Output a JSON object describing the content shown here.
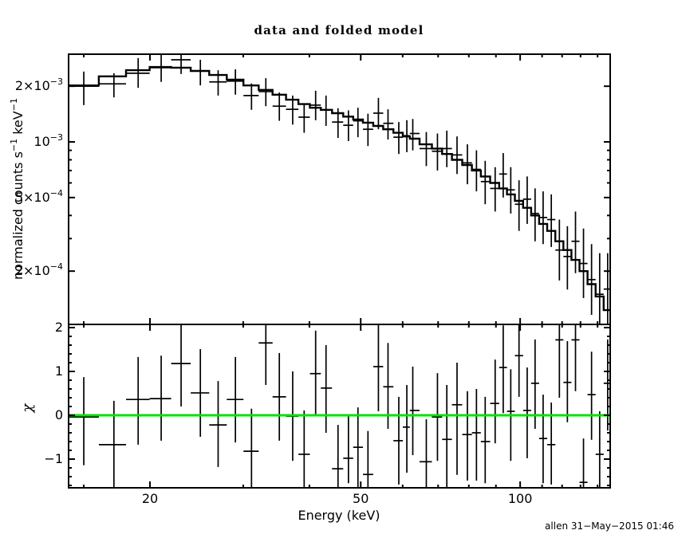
{
  "title": "data and folded model",
  "footer": "allen 31−May−2015 01:46",
  "colors": {
    "foreground": "#000000",
    "background": "#ffffff",
    "model_line": "#000000",
    "zero_line": "#00e300"
  },
  "chart_data": [
    {
      "id": "spectrum",
      "type": "scatter",
      "panel": "top",
      "title": "data and folded model",
      "xscale": "log",
      "yscale": "log",
      "ylabel": "normalized counts s⁻¹ keV⁻¹",
      "ylabel_segments": [
        {
          "t": "normalized counts s"
        },
        {
          "t": "−1",
          "sup": true
        },
        {
          "t": " keV"
        },
        {
          "t": "−1",
          "sup": true
        }
      ],
      "xlim": [
        14.0,
        148.0
      ],
      "ylim": [
        0.000103,
        0.00298
      ],
      "grid": false,
      "xticks": {
        "major": [
          20,
          50,
          100
        ],
        "labels": [
          "20",
          "50",
          "100"
        ],
        "minor": [
          15,
          30,
          40,
          60,
          70,
          80,
          90,
          110,
          120,
          130,
          140
        ]
      },
      "yticks": {
        "major": [
          0.002,
          0.001,
          0.0005,
          0.0002
        ],
        "labels": [
          {
            "base": "2×10",
            "exp": "−3"
          },
          {
            "base": "10",
            "exp": "−3"
          },
          {
            "base": "5×10",
            "exp": "−4"
          },
          {
            "base": "2×10",
            "exp": "−4"
          }
        ],
        "minor": [
          0.0009,
          0.0008,
          0.0007,
          0.0006,
          0.0004,
          0.0003
        ]
      },
      "points_format": [
        "energy_keV",
        "value",
        "err_lo",
        "err_hi"
      ],
      "points": [
        [
          15.0,
          0.002,
          0.00158,
          0.0024
        ],
        [
          17.1,
          0.00206,
          0.00174,
          0.00235
        ],
        [
          19.0,
          0.00235,
          0.00196,
          0.00284
        ],
        [
          21.0,
          0.00252,
          0.00211,
          0.00298
        ],
        [
          22.9,
          0.00278,
          0.00233,
          0.00298
        ],
        [
          24.9,
          0.00242,
          0.00202,
          0.00278
        ],
        [
          26.9,
          0.00211,
          0.00178,
          0.00244
        ],
        [
          29.0,
          0.00213,
          0.0018,
          0.00247
        ],
        [
          31.1,
          0.00178,
          0.00149,
          0.00207
        ],
        [
          33.1,
          0.00187,
          0.00156,
          0.00221
        ],
        [
          35.1,
          0.00156,
          0.0013,
          0.00185
        ],
        [
          37.2,
          0.0015,
          0.00124,
          0.00178
        ],
        [
          39.1,
          0.00136,
          0.00112,
          0.0016
        ],
        [
          41.1,
          0.00158,
          0.00131,
          0.00189
        ],
        [
          43.0,
          0.00149,
          0.00122,
          0.00178
        ],
        [
          45.3,
          0.00128,
          0.00105,
          0.00152
        ],
        [
          47.4,
          0.00123,
          0.00101,
          0.00148
        ],
        [
          49.4,
          0.0013,
          0.00106,
          0.00153
        ],
        [
          51.6,
          0.00117,
          0.00095,
          0.00142
        ],
        [
          54.0,
          0.00143,
          0.00117,
          0.00173
        ],
        [
          56.3,
          0.00126,
          0.00103,
          0.0015
        ],
        [
          59.0,
          0.00106,
          0.00086,
          0.00128
        ],
        [
          61.1,
          0.00108,
          0.00088,
          0.00131
        ],
        [
          62.7,
          0.00111,
          0.0009,
          0.00133
        ],
        [
          66.5,
          0.00092,
          0.00074,
          0.00113
        ],
        [
          69.8,
          0.00089,
          0.0007,
          0.00111
        ],
        [
          72.7,
          0.00092,
          0.00073,
          0.00115
        ],
        [
          76.0,
          0.00085,
          0.00067,
          0.00107
        ],
        [
          79.5,
          0.00077,
          0.00059,
          0.00097
        ],
        [
          82.7,
          0.00071,
          0.00054,
          0.0009
        ],
        [
          85.9,
          0.00061,
          0.00046,
          0.00079
        ],
        [
          89.7,
          0.00056,
          0.00042,
          0.00073
        ],
        [
          92.9,
          0.00067,
          0.0005,
          0.00087
        ],
        [
          96.0,
          0.00055,
          0.00041,
          0.00073
        ],
        [
          99.5,
          0.00046,
          0.00033,
          0.00062
        ],
        [
          103.1,
          0.00049,
          0.00036,
          0.00065
        ],
        [
          106.7,
          0.00041,
          0.00029,
          0.00056
        ],
        [
          110.5,
          0.00039,
          0.00028,
          0.00054
        ],
        [
          114.5,
          0.00038,
          0.00027,
          0.00052
        ],
        [
          118.6,
          0.00026,
          0.000178,
          0.00038
        ],
        [
          122.8,
          0.00024,
          0.000159,
          0.00035
        ],
        [
          127.2,
          0.00029,
          0.000195,
          0.00042
        ],
        [
          131.7,
          0.00022,
          0.000143,
          0.00034
        ],
        [
          136.4,
          0.00018,
          0.000116,
          0.00028
        ],
        [
          141.3,
          0.00015,
          0.000103,
          0.00025
        ],
        [
          146.3,
          0.00016,
          0.000103,
          0.00025
        ]
      ],
      "model_step_format": [
        "energy_keV",
        "model_value"
      ],
      "model_step": [
        [
          15.0,
          0.00202
        ],
        [
          17.1,
          0.00226
        ],
        [
          19.0,
          0.00244
        ],
        [
          21.0,
          0.00254
        ],
        [
          22.9,
          0.00252
        ],
        [
          24.9,
          0.00242
        ],
        [
          26.9,
          0.0023
        ],
        [
          29.0,
          0.00217
        ],
        [
          31.1,
          0.00202
        ],
        [
          33.1,
          0.00191
        ],
        [
          35.1,
          0.0018
        ],
        [
          37.2,
          0.00169
        ],
        [
          39.1,
          0.0016
        ],
        [
          41.1,
          0.00153
        ],
        [
          43.0,
          0.00149
        ],
        [
          45.3,
          0.00143
        ],
        [
          47.4,
          0.00137
        ],
        [
          49.4,
          0.00132
        ],
        [
          51.6,
          0.00127
        ],
        [
          54.0,
          0.00122
        ],
        [
          56.3,
          0.00117
        ],
        [
          59.0,
          0.00112
        ],
        [
          61.1,
          0.00107
        ],
        [
          62.7,
          0.00104
        ],
        [
          66.5,
          0.00097
        ],
        [
          69.8,
          0.00092
        ],
        [
          72.7,
          0.00086
        ],
        [
          76.0,
          0.0008
        ],
        [
          79.5,
          0.00075
        ],
        [
          82.7,
          0.0007
        ],
        [
          85.9,
          0.00065
        ],
        [
          89.7,
          0.0006
        ],
        [
          92.9,
          0.00056
        ],
        [
          96.0,
          0.00052
        ],
        [
          99.5,
          0.00048
        ],
        [
          103.1,
          0.00044
        ],
        [
          106.7,
          0.0004
        ],
        [
          110.5,
          0.00036
        ],
        [
          114.5,
          0.00033
        ],
        [
          118.6,
          0.00029
        ],
        [
          122.8,
          0.00026
        ],
        [
          127.2,
          0.00023
        ],
        [
          131.7,
          0.0002
        ],
        [
          136.4,
          0.00017
        ],
        [
          141.3,
          0.000146
        ],
        [
          146.3,
          0.000123
        ]
      ]
    },
    {
      "id": "residuals",
      "type": "errorbar",
      "panel": "bottom",
      "ylabel": "χ",
      "xlabel": "Energy (keV)",
      "xscale": "log",
      "xlim": [
        14.0,
        148.0
      ],
      "ylim": [
        -1.655,
        2.07
      ],
      "grid": false,
      "yticks": {
        "major": [
          2,
          1,
          0,
          -1
        ],
        "labels": [
          "2",
          "1",
          "0",
          "−1"
        ],
        "minor_step": 0.2
      },
      "zero_line": {
        "y": 0,
        "color": "#00e300"
      },
      "points_format": [
        "energy_keV",
        "chi",
        "err_lo",
        "err_hi"
      ],
      "points": [
        [
          15.0,
          -0.04,
          -1.14,
          0.87
        ],
        [
          17.1,
          -0.67,
          -1.66,
          0.33
        ],
        [
          19.0,
          0.36,
          -0.67,
          1.33
        ],
        [
          21.0,
          0.38,
          -0.58,
          1.36
        ],
        [
          22.9,
          1.18,
          0.2,
          2.07
        ],
        [
          24.9,
          0.51,
          -0.49,
          1.51
        ],
        [
          26.9,
          -0.22,
          -1.18,
          0.78
        ],
        [
          29.0,
          0.36,
          -0.62,
          1.33
        ],
        [
          31.1,
          -0.82,
          -1.66,
          0.15
        ],
        [
          33.1,
          1.65,
          0.69,
          2.07
        ],
        [
          35.1,
          0.42,
          -0.58,
          1.42
        ],
        [
          37.2,
          -0.02,
          -1.04,
          1.0
        ],
        [
          39.1,
          -0.89,
          -1.66,
          0.11
        ],
        [
          41.1,
          0.95,
          0.0,
          1.93
        ],
        [
          43.0,
          0.62,
          -0.4,
          1.6
        ],
        [
          45.3,
          -1.22,
          -1.66,
          -0.22
        ],
        [
          47.4,
          -0.98,
          -1.55,
          0.0
        ],
        [
          49.4,
          -0.73,
          -1.66,
          0.18
        ],
        [
          51.6,
          -1.35,
          -1.66,
          -0.36
        ],
        [
          54.0,
          1.11,
          0.09,
          2.07
        ],
        [
          56.3,
          0.65,
          -0.31,
          1.65
        ],
        [
          59.0,
          -0.58,
          -1.58,
          0.42
        ],
        [
          61.1,
          -0.27,
          -1.31,
          0.69
        ],
        [
          62.7,
          0.11,
          -0.91,
          1.11
        ],
        [
          66.5,
          -1.06,
          -1.66,
          -0.09
        ],
        [
          69.8,
          -0.04,
          -1.04,
          0.96
        ],
        [
          72.7,
          -0.55,
          -1.66,
          0.69
        ],
        [
          76.0,
          0.24,
          -1.36,
          1.2
        ],
        [
          79.5,
          -0.44,
          -1.49,
          0.55
        ],
        [
          82.7,
          -0.4,
          -1.49,
          0.6
        ],
        [
          85.9,
          -0.6,
          -1.55,
          0.42
        ],
        [
          89.7,
          0.27,
          -0.64,
          1.27
        ],
        [
          92.9,
          1.09,
          0.05,
          2.05
        ],
        [
          96.0,
          0.09,
          -1.04,
          1.05
        ],
        [
          99.5,
          1.36,
          0.42,
          2.07
        ],
        [
          103.1,
          0.11,
          -0.98,
          1.09
        ],
        [
          106.7,
          0.73,
          -0.31,
          1.73
        ],
        [
          110.5,
          -0.53,
          -1.55,
          0.47
        ],
        [
          114.5,
          -0.67,
          -1.58,
          0.29
        ],
        [
          118.6,
          1.72,
          0.4,
          2.07
        ],
        [
          122.8,
          0.75,
          -0.16,
          1.69
        ],
        [
          127.2,
          1.72,
          0.55,
          2.07
        ],
        [
          131.7,
          -1.53,
          -1.66,
          -0.53
        ],
        [
          136.4,
          0.47,
          -0.56,
          1.45
        ],
        [
          141.3,
          -0.89,
          -1.66,
          0.09
        ],
        [
          146.3,
          0.73,
          -0.35,
          1.73
        ]
      ]
    }
  ]
}
